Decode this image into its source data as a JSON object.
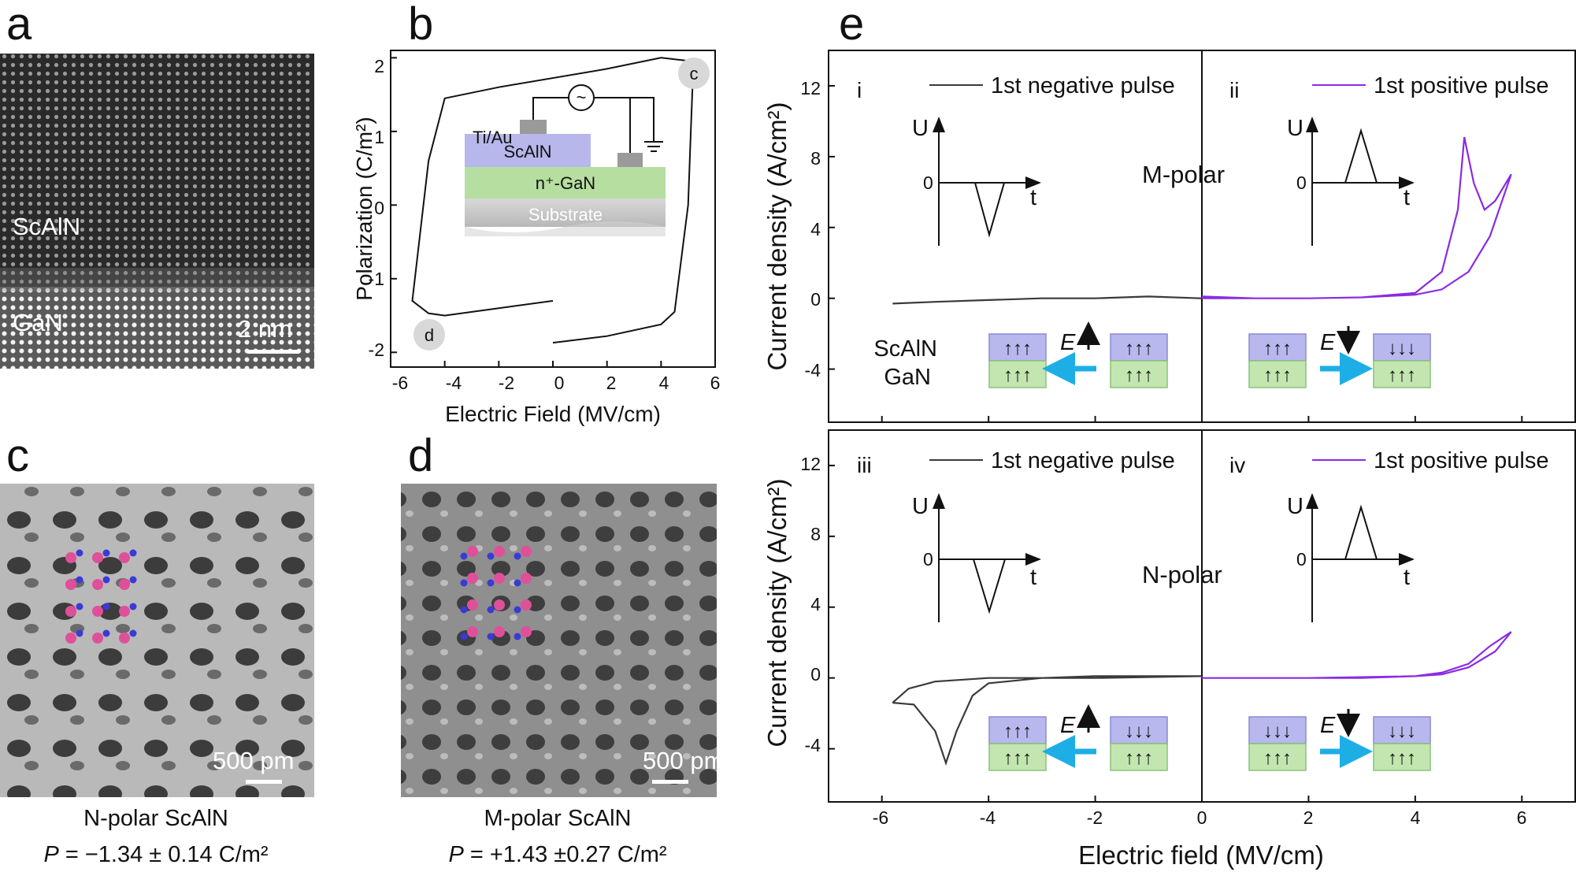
{
  "panels": {
    "a": {
      "letter": "a",
      "top_label": "ScAlN",
      "bottom_label": "GaN",
      "scale_bar": "2 nm"
    },
    "b": {
      "letter": "b",
      "xlabel": "Electric Field (MV/cm)",
      "ylabel": "Polarization (C/m²)",
      "xticks": [
        "-6",
        "-4",
        "-2",
        "0",
        "2",
        "4",
        "6"
      ],
      "yticks": [
        "2",
        "1",
        "0",
        "-1",
        "-2"
      ],
      "marker_c": "c",
      "marker_d": "d",
      "inset": {
        "electrode": "Ti/Au",
        "layer_top": "ScAlN",
        "layer_mid": "n⁺-GaN",
        "layer_bottom": "Substrate",
        "source_symbol": "~"
      }
    },
    "c": {
      "letter": "c",
      "scale_bar": "500 pm",
      "caption_line1": "N-polar ScAlN",
      "caption_p": "P",
      "caption_value": " = −1.34 ± 0.14 C/m²"
    },
    "d": {
      "letter": "d",
      "scale_bar": "500 pm",
      "caption_line1": "M-polar ScAlN",
      "caption_p": "P",
      "caption_value": " = +1.43 ±0.27 C/m²"
    },
    "e": {
      "letter": "e",
      "xlabel": "Electric field (MV/cm)",
      "ylabel": "Current density (A/cm²)",
      "xticks": [
        "-6",
        "-4",
        "-2",
        "0",
        "2",
        "4",
        "6"
      ],
      "yticks": [
        "12",
        "8",
        "4",
        "0",
        "-4"
      ],
      "top": {
        "roman_left": "i",
        "roman_right": "ii",
        "legend_neg": "1st negative pulse",
        "legend_pos": "1st positive pulse",
        "polarity": "M-polar",
        "stack_label_1": "ScAlN",
        "stack_label_2": "GaN",
        "field_left": "E",
        "field_right": "E"
      },
      "bottom": {
        "roman_left": "iii",
        "roman_right": "iv",
        "legend_neg": "1st negative pulse",
        "legend_pos": "1st positive pulse",
        "polarity": "N-polar",
        "field_left": "E",
        "field_right": "E"
      },
      "pulse_inset": {
        "u": "U",
        "zero": "0",
        "t": "t"
      }
    }
  },
  "colors": {
    "negative_curve": "#3a3a3a",
    "positive_curve": "#8a2be2",
    "scaln_layer": "#b8b8ee",
    "gan_layer": "#c3e6b0",
    "arrow": "#1eaee6",
    "n_atom": "#3a3ad6",
    "sc_atom": "#e0509a"
  },
  "chart_data": [
    {
      "type": "line",
      "name": "b",
      "xlabel": "Electric Field (MV/cm)",
      "ylabel": "Polarization (C/m²)",
      "xlim": [
        -6,
        6
      ],
      "ylim": [
        -2.2,
        2.1
      ],
      "loop": {
        "x": [
          0,
          2,
          4,
          4.5,
          5.0,
          5.1,
          5.2,
          4.0,
          2.0,
          -2.0,
          -4.0,
          -4.6,
          -5.2,
          -4.6,
          -4.0,
          -2.0,
          0
        ],
        "y": [
          -1.87,
          -1.78,
          -1.62,
          -1.45,
          0.0,
          1.0,
          1.95,
          2.0,
          1.85,
          1.6,
          1.45,
          0.6,
          -1.3,
          -1.47,
          -1.5,
          -1.4,
          -1.3
        ]
      }
    },
    {
      "type": "line",
      "name": "e-top",
      "xlim": [
        -7,
        7
      ],
      "ylim": [
        -7,
        14
      ],
      "series": [
        {
          "name": "1st negative pulse",
          "x": [
            -5.8,
            -5,
            -4,
            -3,
            -2,
            -1,
            0
          ],
          "y": [
            -0.3,
            -0.2,
            -0.1,
            0.0,
            0.0,
            0.1,
            0.0
          ]
        },
        {
          "name": "1st positive pulse",
          "x": [
            0,
            1,
            2,
            3,
            4,
            4.5,
            4.8,
            4.92,
            5.1,
            5.3,
            5.5,
            5.8,
            5.4,
            5.0,
            4.5,
            4.0,
            3.0,
            2.0,
            1.0,
            0
          ],
          "y": [
            0.1,
            0.0,
            0.0,
            0.05,
            0.3,
            1.5,
            5.0,
            9.1,
            6.5,
            5.0,
            5.5,
            7.0,
            3.5,
            1.5,
            0.5,
            0.2,
            0.05,
            0.0,
            0.0,
            0.0
          ]
        }
      ]
    },
    {
      "type": "line",
      "name": "e-bottom",
      "xlim": [
        -7,
        7
      ],
      "ylim": [
        -7,
        14
      ],
      "series": [
        {
          "name": "1st negative pulse",
          "x": [
            -5.8,
            -5.4,
            -5.0,
            -4.8,
            -4.6,
            -4.3,
            -4.0,
            -3.0,
            -2.0,
            0,
            -2.0,
            -4.0,
            -5.0,
            -5.5,
            -5.8
          ],
          "y": [
            -1.4,
            -1.5,
            -3.0,
            -4.8,
            -3.0,
            -1.0,
            -0.3,
            0.0,
            0.1,
            0.1,
            0.0,
            0.0,
            -0.2,
            -0.6,
            -1.4
          ]
        },
        {
          "name": "1st positive pulse",
          "x": [
            0,
            1,
            2,
            3,
            4,
            4.5,
            5.0,
            5.4,
            5.8,
            5.5,
            5.0,
            4.5,
            4.0,
            2.0,
            0
          ],
          "y": [
            0.0,
            0.0,
            0.0,
            0.0,
            0.1,
            0.3,
            0.8,
            1.8,
            2.6,
            1.5,
            0.6,
            0.2,
            0.1,
            0.0,
            0.0
          ]
        }
      ]
    }
  ]
}
